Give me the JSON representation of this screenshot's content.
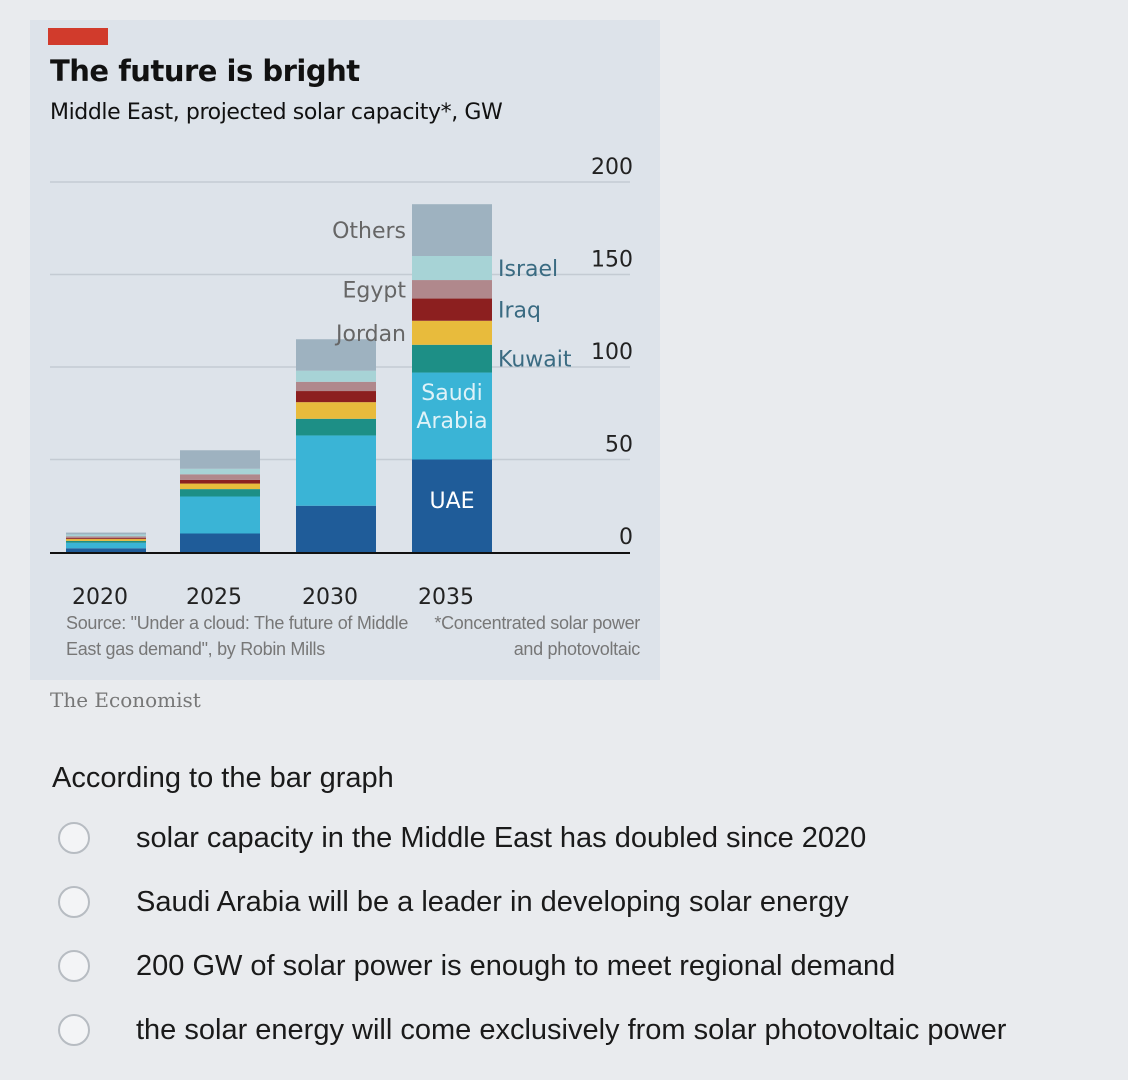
{
  "chart_data": {
    "type": "bar",
    "stacked": true,
    "title": "The future is bright",
    "subtitle": "Middle East, projected solar capacity*, GW",
    "categories": [
      "2020",
      "2025",
      "2030",
      "2035"
    ],
    "yticks": [
      "0",
      "50",
      "100",
      "150",
      "200"
    ],
    "ylim": [
      0,
      200
    ],
    "series": [
      {
        "name": "UAE",
        "color": "#1f5c99",
        "values": [
          2,
          10,
          25,
          50
        ]
      },
      {
        "name": "Saudi Arabia",
        "color": "#3ab4d6",
        "values": [
          3,
          20,
          38,
          47
        ]
      },
      {
        "name": "Kuwait",
        "color": "#1d8f86",
        "values": [
          1,
          4,
          9,
          15
        ]
      },
      {
        "name": "Jordan",
        "color": "#e8bb3c",
        "values": [
          1,
          3,
          9,
          13
        ]
      },
      {
        "name": "Iraq",
        "color": "#8c1f1f",
        "values": [
          0.5,
          2,
          6,
          12
        ]
      },
      {
        "name": "Egypt",
        "color": "#b0888c",
        "values": [
          1,
          3,
          5,
          10
        ]
      },
      {
        "name": "Israel",
        "color": "#a7d3d6",
        "values": [
          1,
          3,
          6,
          13
        ]
      },
      {
        "name": "Others",
        "color": "#9eb2c0",
        "values": [
          1,
          10,
          17,
          28
        ]
      }
    ],
    "labels_left": [
      "Others",
      "Egypt",
      "Jordan"
    ],
    "labels_right": [
      "Israel",
      "Iraq",
      "Kuwait"
    ],
    "label_inside_saudi": "Saudi\nArabia",
    "label_inside_uae": "UAE",
    "source": "Source: \"Under a cloud: The future of Middle East gas demand\", by Robin Mills",
    "footnote": "*Concentrated solar power and photovoltaic",
    "brand": "The Economist"
  },
  "question": {
    "prompt": "According to the bar graph",
    "options": [
      "solar capacity in the Middle East has doubled since 2020",
      "Saudi Arabia will be a leader in developing solar energy",
      "200 GW of solar power is enough to meet regional demand",
      "the solar energy will come exclusively from solar photovoltaic power"
    ]
  }
}
